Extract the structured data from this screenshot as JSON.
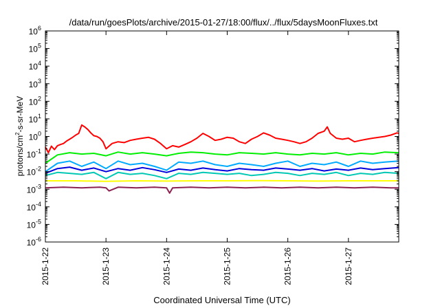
{
  "chart_data": {
    "type": "line",
    "title": "/data/run/goesPlots/archive/2015-01-27/18:00/flux/../flux/5daysMoonFluxes.txt",
    "xlabel": "Coordinated Universal Time (UTC)",
    "ylabel": {
      "prefix": "protons/cm",
      "sup": "2",
      "suffix": "-s-sr-MeV"
    },
    "yscale": "log",
    "ylim_exponents": [
      -6,
      6
    ],
    "y_ticks": [
      {
        "base": "10",
        "exp": "-6"
      },
      {
        "base": "10",
        "exp": "-5"
      },
      {
        "base": "10",
        "exp": "-4"
      },
      {
        "base": "10",
        "exp": "-3"
      },
      {
        "base": "10",
        "exp": "-2"
      },
      {
        "base": "10",
        "exp": "-1"
      },
      {
        "base": "10",
        "exp": "0"
      },
      {
        "base": "10",
        "exp": "1"
      },
      {
        "base": "10",
        "exp": "2"
      },
      {
        "base": "10",
        "exp": "3"
      },
      {
        "base": "10",
        "exp": "4"
      },
      {
        "base": "10",
        "exp": "5"
      },
      {
        "base": "10",
        "exp": "6"
      }
    ],
    "x_tick_labels": [
      "2015-1-22",
      "2015-1-23",
      "2015-1-24",
      "2015-1-25",
      "2015-1-26",
      "2015-1-27"
    ],
    "x_domain_days": [
      0,
      5.83
    ],
    "grid": false,
    "legend": "none",
    "series": [
      {
        "color": "#ff0000",
        "x": [
          0,
          0.05,
          0.1,
          0.15,
          0.2,
          0.25,
          0.3,
          0.35,
          0.4,
          0.45,
          0.5,
          0.55,
          0.6,
          0.65,
          0.7,
          0.75,
          0.8,
          0.85,
          0.9,
          0.95,
          1.0,
          1.1,
          1.2,
          1.3,
          1.4,
          1.5,
          1.6,
          1.7,
          1.8,
          1.9,
          2.0,
          2.1,
          2.2,
          2.3,
          2.4,
          2.5,
          2.6,
          2.7,
          2.8,
          2.9,
          3.0,
          3.1,
          3.2,
          3.3,
          3.4,
          3.5,
          3.6,
          3.7,
          3.8,
          3.9,
          4.0,
          4.1,
          4.2,
          4.3,
          4.4,
          4.5,
          4.6,
          4.65,
          4.7,
          4.8,
          4.9,
          5.0,
          5.1,
          5.2,
          5.3,
          5.4,
          5.5,
          5.6,
          5.7,
          5.8,
          5.83
        ],
        "y": [
          0.25,
          0.12,
          0.28,
          0.18,
          0.3,
          0.35,
          0.4,
          0.55,
          0.7,
          0.9,
          1.2,
          1.5,
          4.5,
          3.5,
          2.5,
          1.6,
          1.1,
          1.0,
          0.8,
          0.5,
          0.2,
          0.4,
          0.5,
          0.45,
          0.6,
          0.7,
          0.8,
          0.9,
          0.7,
          0.4,
          0.2,
          0.3,
          0.25,
          0.35,
          0.5,
          0.8,
          1.5,
          1.0,
          0.6,
          0.7,
          0.9,
          0.8,
          0.5,
          0.4,
          0.7,
          1.0,
          1.6,
          1.2,
          0.8,
          0.7,
          0.6,
          0.5,
          0.4,
          0.5,
          0.8,
          1.5,
          2.0,
          3.5,
          1.5,
          0.8,
          0.7,
          0.8,
          0.5,
          0.6,
          0.7,
          0.8,
          0.9,
          1.0,
          1.2,
          1.6,
          1.5
        ]
      },
      {
        "color": "#00ee00",
        "x": [
          0,
          0.2,
          0.4,
          0.6,
          0.8,
          1.0,
          1.2,
          1.4,
          1.6,
          1.8,
          2.0,
          2.2,
          2.4,
          2.6,
          2.8,
          3.0,
          3.2,
          3.4,
          3.6,
          3.8,
          4.0,
          4.2,
          4.4,
          4.6,
          4.8,
          5.0,
          5.2,
          5.4,
          5.6,
          5.83
        ],
        "y": [
          0.03,
          0.09,
          0.12,
          0.1,
          0.11,
          0.08,
          0.13,
          0.1,
          0.12,
          0.1,
          0.08,
          0.11,
          0.13,
          0.12,
          0.1,
          0.09,
          0.12,
          0.11,
          0.1,
          0.12,
          0.1,
          0.09,
          0.11,
          0.1,
          0.12,
          0.09,
          0.11,
          0.1,
          0.13,
          0.12
        ]
      },
      {
        "color": "#00aaff",
        "x": [
          0,
          0.2,
          0.4,
          0.6,
          0.8,
          1.0,
          1.2,
          1.4,
          1.6,
          1.8,
          2.0,
          2.2,
          2.4,
          2.6,
          2.8,
          3.0,
          3.2,
          3.4,
          3.6,
          3.8,
          4.0,
          4.2,
          4.4,
          4.6,
          4.8,
          5.0,
          5.2,
          5.4,
          5.6,
          5.83
        ],
        "y": [
          0.01,
          0.03,
          0.04,
          0.02,
          0.035,
          0.015,
          0.04,
          0.025,
          0.03,
          0.02,
          0.012,
          0.035,
          0.03,
          0.04,
          0.025,
          0.02,
          0.03,
          0.025,
          0.02,
          0.03,
          0.04,
          0.02,
          0.03,
          0.025,
          0.035,
          0.02,
          0.04,
          0.03,
          0.035,
          0.04
        ]
      },
      {
        "color": "#0000dd",
        "x": [
          0,
          0.2,
          0.4,
          0.6,
          0.8,
          1.0,
          1.2,
          1.4,
          1.6,
          1.8,
          2.0,
          2.2,
          2.4,
          2.6,
          2.8,
          3.0,
          3.2,
          3.4,
          3.6,
          3.8,
          4.0,
          4.2,
          4.4,
          4.6,
          4.8,
          5.0,
          5.2,
          5.4,
          5.6,
          5.83
        ],
        "y": [
          0.008,
          0.015,
          0.018,
          0.012,
          0.016,
          0.01,
          0.015,
          0.012,
          0.017,
          0.013,
          0.009,
          0.014,
          0.012,
          0.016,
          0.013,
          0.011,
          0.015,
          0.013,
          0.012,
          0.016,
          0.014,
          0.012,
          0.015,
          0.011,
          0.014,
          0.012,
          0.016,
          0.013,
          0.015,
          0.017
        ]
      },
      {
        "color": "#00c8b4",
        "x": [
          0,
          0.2,
          0.4,
          0.6,
          0.8,
          1.0,
          1.2,
          1.4,
          1.6,
          1.8,
          2.0,
          2.2,
          2.4,
          2.6,
          2.8,
          3.0,
          3.2,
          3.4,
          3.6,
          3.8,
          4.0,
          4.2,
          4.4,
          4.6,
          4.8,
          5.0,
          5.2,
          5.4,
          5.6,
          5.83
        ],
        "y": [
          0.006,
          0.009,
          0.008,
          0.007,
          0.009,
          0.004,
          0.009,
          0.007,
          0.008,
          0.006,
          0.004,
          0.008,
          0.007,
          0.009,
          0.008,
          0.007,
          0.008,
          0.006,
          0.007,
          0.009,
          0.008,
          0.006,
          0.008,
          0.007,
          0.009,
          0.006,
          0.008,
          0.007,
          0.009,
          0.008
        ]
      },
      {
        "color": "#ffff00",
        "x": [
          0,
          0.5,
          1.0,
          1.5,
          2.0,
          2.5,
          3.0,
          3.5,
          4.0,
          4.5,
          5.0,
          5.5,
          5.83
        ],
        "y": [
          0.003,
          0.003,
          0.0028,
          0.003,
          0.0029,
          0.003,
          0.003,
          0.0031,
          0.003,
          0.0029,
          0.003,
          0.003,
          0.003
        ]
      },
      {
        "color": "#8b2252",
        "x": [
          0,
          0.3,
          0.6,
          0.9,
          1.0,
          1.05,
          1.2,
          1.5,
          1.8,
          2.0,
          2.05,
          2.1,
          2.4,
          2.7,
          3.0,
          3.3,
          3.6,
          3.9,
          4.2,
          4.5,
          4.8,
          5.1,
          5.4,
          5.7,
          5.83
        ],
        "y": [
          0.0012,
          0.0013,
          0.0012,
          0.0013,
          0.0012,
          0.0008,
          0.0013,
          0.0012,
          0.0013,
          0.0012,
          0.0006,
          0.0012,
          0.0013,
          0.0012,
          0.0013,
          0.0012,
          0.0013,
          0.0012,
          0.0013,
          0.0012,
          0.0013,
          0.0012,
          0.0013,
          0.0012,
          0.0012
        ]
      }
    ]
  }
}
